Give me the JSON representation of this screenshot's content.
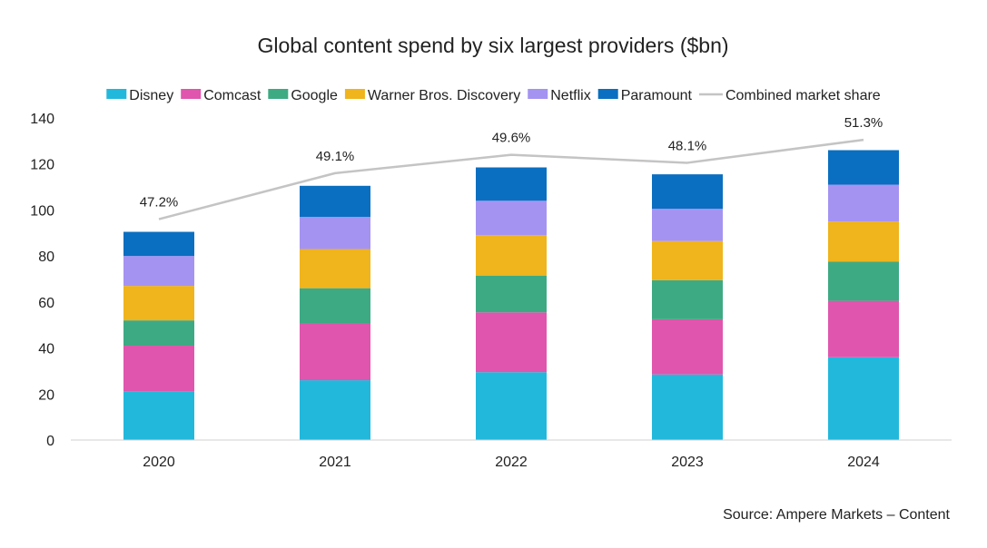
{
  "chart_data": {
    "type": "bar",
    "stacked": true,
    "title": "Global content spend by six largest providers ($bn)",
    "xlabel": "",
    "ylabel": "",
    "categories": [
      "2020",
      "2021",
      "2022",
      "2023",
      "2024"
    ],
    "ylim": [
      0,
      140
    ],
    "yticks": [
      0,
      20,
      40,
      60,
      80,
      100,
      120,
      140
    ],
    "grid": false,
    "legend_position": "top",
    "series": [
      {
        "name": "Disney",
        "color": "#22b8dc",
        "values": [
          21,
          26,
          29.5,
          28.5,
          36
        ]
      },
      {
        "name": "Comcast",
        "color": "#e055ad",
        "values": [
          20,
          24.5,
          26,
          24,
          24.5
        ]
      },
      {
        "name": "Google",
        "color": "#3daa84",
        "values": [
          11,
          15.5,
          16,
          17,
          17
        ]
      },
      {
        "name": "Warner Bros. Discovery",
        "color": "#f0b41c",
        "values": [
          15,
          17,
          17.5,
          17,
          17.5
        ]
      },
      {
        "name": "Netflix",
        "color": "#a593f2",
        "values": [
          13,
          14,
          15,
          14,
          16
        ]
      },
      {
        "name": "Paramount",
        "color": "#0a6fc0",
        "values": [
          10.5,
          13.5,
          14.5,
          15,
          15
        ]
      }
    ],
    "line_series": {
      "name": "Combined market share",
      "color": "#c4c4c4",
      "labels": [
        "47.2%",
        "49.1%",
        "49.6%",
        "48.1%",
        "51.3%"
      ],
      "plot_values": [
        96,
        116,
        124,
        120.5,
        130.5
      ]
    },
    "source": "Source: Ampere Markets – Content"
  }
}
